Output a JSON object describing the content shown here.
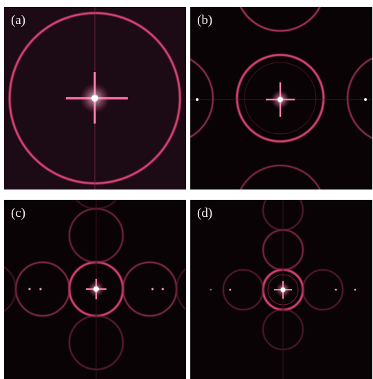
{
  "panels": [
    {
      "id": "a",
      "label": "(a)"
    },
    {
      "id": "b",
      "label": "(b)"
    },
    {
      "id": "c",
      "label": "(c)"
    },
    {
      "id": "d",
      "label": "(d)"
    }
  ],
  "colors": {
    "background": "#ffffff",
    "panel_background": "#090306",
    "ring": "#e8467a",
    "center_spot": "#ffffff",
    "label": "#f4f4f4"
  }
}
